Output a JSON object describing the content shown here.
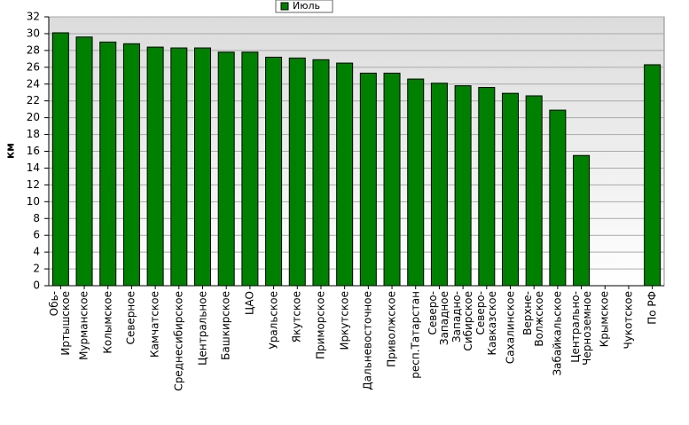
{
  "chart_data": {
    "type": "bar",
    "y_label": "км",
    "legend": "top",
    "series": [
      {
        "name": "Июль",
        "color": "#008000",
        "values": [
          30.1,
          29.6,
          29.0,
          28.8,
          28.4,
          28.3,
          28.3,
          27.8,
          27.8,
          27.2,
          27.1,
          26.9,
          26.5,
          25.3,
          25.3,
          24.6,
          24.1,
          23.8,
          23.6,
          22.9,
          22.6,
          20.9,
          15.5,
          0,
          0,
          26.3
        ]
      }
    ],
    "categories": [
      "Обь-\nИртышское",
      "Мурманское",
      "Колымское",
      "Северное",
      "Камчатское",
      "Среднесибирское",
      "Центральное",
      "Башкирское",
      "ЦАО",
      "Уральское",
      "Якутское",
      "Приморское",
      "Иркутское",
      "Дальневосточное",
      "Приволжское",
      "респ.Татарстан",
      "Северо-\nЗападное",
      "Западно-\nСибирское",
      "Северо-\nКавказское",
      "Сахалинское",
      "Верхне-\nВолжское",
      "Забайкальское",
      "Центрально-\nЧерноземное",
      "Крымское",
      "Чукотское",
      "По РФ"
    ],
    "ylim": [
      0,
      32
    ],
    "yticks": [
      0,
      2,
      4,
      6,
      8,
      10,
      12,
      14,
      16,
      18,
      20,
      22,
      24,
      26,
      28,
      30,
      32
    ],
    "grid": true
  }
}
